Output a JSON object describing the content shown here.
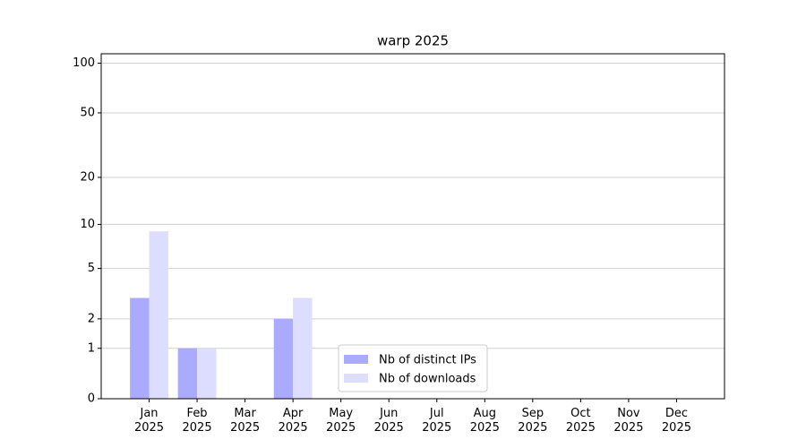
{
  "chart_data": {
    "type": "bar",
    "title": "warp 2025",
    "categories": [
      "Jan\n2025",
      "Feb\n2025",
      "Mar\n2025",
      "Apr\n2025",
      "May\n2025",
      "Jun\n2025",
      "Jul\n2025",
      "Aug\n2025",
      "Sep\n2025",
      "Oct\n2025",
      "Nov\n2025",
      "Dec\n2025"
    ],
    "series": [
      {
        "name": "Nb of distinct IPs",
        "color": "#aaaaff",
        "values": [
          3,
          1,
          0,
          2,
          0,
          0,
          0,
          0,
          0,
          0,
          0,
          0
        ]
      },
      {
        "name": "Nb of downloads",
        "color": "#ddddff",
        "values": [
          9,
          1,
          0,
          3,
          0,
          0,
          0,
          0,
          0,
          0,
          0,
          0
        ]
      }
    ],
    "yscale": "log1p",
    "ylim": [
      0,
      114
    ],
    "yticks": [
      0,
      1,
      2,
      5,
      10,
      20,
      50,
      100
    ],
    "grid": true,
    "legend": "lower center"
  }
}
